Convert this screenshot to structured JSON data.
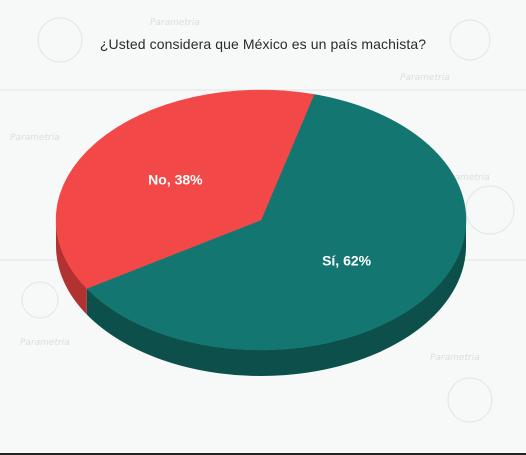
{
  "chart_data": {
    "type": "pie",
    "title": "¿Usted considera que México es un país machista?",
    "slices": [
      {
        "label": "Sí, 62%",
        "category": "Sí",
        "value": 62,
        "color": "#137670",
        "side_color": "#0d4f4b"
      },
      {
        "label": "No, 38%",
        "category": "No",
        "value": 38,
        "color": "#f24848",
        "side_color": "#b23232"
      }
    ],
    "style": "3d-tilted",
    "legend": "none"
  }
}
